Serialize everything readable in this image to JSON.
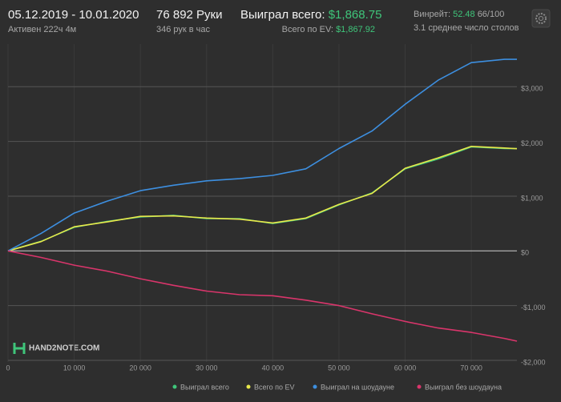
{
  "header": {
    "date_range": "05.12.2019 - 10.01.2020",
    "active": "Активен 222ч 4м",
    "hands": "76 892 Руки",
    "hands_per_hour": "346 рук в час",
    "won_label": "Выиграл всего:",
    "won_value": "$1,868.75",
    "ev_label": "Всего по EV:",
    "ev_value": "$1,867.92",
    "winrate_label": "Винрейт:",
    "winrate_value": "52.48",
    "winrate_extra": "66/100",
    "tables": "3.1 среднее число столов"
  },
  "logo": "HAND2NOTE.COM",
  "chart_data": {
    "type": "line",
    "x": [
      0,
      5000,
      10000,
      15000,
      20000,
      25000,
      30000,
      35000,
      40000,
      45000,
      50000,
      55000,
      60000,
      65000,
      70000,
      75000,
      76892
    ],
    "series": [
      {
        "name": "Выиграл всего",
        "color": "#3fc57a",
        "values": [
          0,
          176,
          430,
          540,
          620,
          650,
          590,
          590,
          500,
          590,
          840,
          1060,
          1500,
          1680,
          1900,
          1870,
          1868.75
        ]
      },
      {
        "name": "Всего по EV",
        "color": "#e8e84a",
        "values": [
          0,
          170,
          440,
          530,
          630,
          640,
          600,
          580,
          510,
          600,
          850,
          1050,
          1510,
          1700,
          1910,
          1880,
          1867.92
        ]
      },
      {
        "name": "Выиграл на шоудауне",
        "color": "#3d8fe0",
        "values": [
          0,
          320,
          690,
          910,
          1100,
          1200,
          1280,
          1320,
          1380,
          1500,
          1870,
          2190,
          2680,
          3120,
          3440,
          3500,
          3500
        ]
      },
      {
        "name": "Выиграл без шоудауна",
        "color": "#d9356b",
        "values": [
          0,
          -120,
          -260,
          -370,
          -510,
          -630,
          -735,
          -800,
          -820,
          -900,
          -1000,
          -1150,
          -1290,
          -1410,
          -1490,
          -1600,
          -1650
        ]
      }
    ],
    "xlim": [
      0,
      76892
    ],
    "ylim": [
      -2030,
      3780
    ],
    "xticks": [
      0,
      {
        "value": 10000,
        "label": "10 000"
      },
      {
        "value": 20000,
        "label": "20 000"
      },
      {
        "value": 30000,
        "label": "30 000"
      },
      {
        "value": 40000,
        "label": "40 000"
      },
      {
        "value": 50000,
        "label": "50 000"
      },
      {
        "value": 60000,
        "label": "60 000"
      },
      {
        "value": 70000,
        "label": "70 000"
      }
    ],
    "yticks": [
      {
        "value": -2000,
        "label": "-$2,000"
      },
      {
        "value": -1000,
        "label": "-$1,000"
      },
      {
        "value": 0,
        "label": "$0"
      },
      {
        "value": 1000,
        "label": "$1,000"
      },
      {
        "value": 2000,
        "label": "$2,000"
      },
      {
        "value": 3000,
        "label": "$3,000"
      }
    ],
    "grid": true,
    "legend": "bottom-right"
  }
}
